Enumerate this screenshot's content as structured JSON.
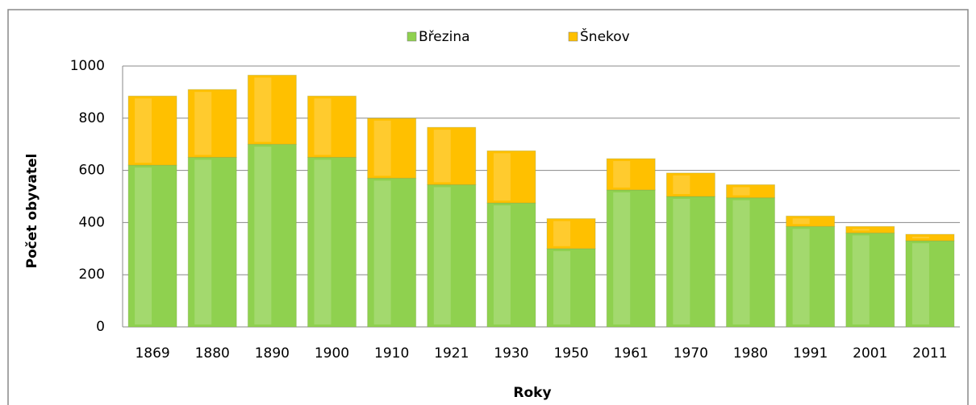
{
  "chart_data": {
    "type": "stacked-bar",
    "categories": [
      "1869",
      "1880",
      "1890",
      "1900",
      "1910",
      "1921",
      "1930",
      "1950",
      "1961",
      "1970",
      "1980",
      "1991",
      "2001",
      "2011"
    ],
    "series": [
      {
        "name": "Březina",
        "color": "#8fd14f",
        "values": [
          620,
          650,
          700,
          650,
          570,
          545,
          475,
          300,
          525,
          500,
          495,
          385,
          360,
          330
        ]
      },
      {
        "name": "Šnekov",
        "color": "#ffc000",
        "values": [
          265,
          260,
          265,
          235,
          230,
          220,
          200,
          115,
          120,
          90,
          50,
          40,
          25,
          25
        ]
      }
    ],
    "ylim": [
      0,
      1000
    ],
    "yticks": [
      0,
      200,
      400,
      600,
      800,
      1000
    ],
    "grid": true,
    "x_label": "Roky",
    "y_label": "Počet obyvatel",
    "legend": "top"
  }
}
